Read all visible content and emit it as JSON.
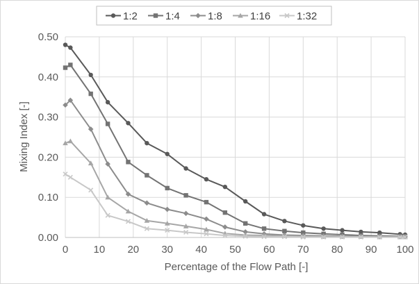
{
  "chart_data": {
    "type": "line",
    "xlabel": "Percentage of the Flow Path [-]",
    "ylabel": "Mixing Index [-]",
    "xlim": [
      0,
      100
    ],
    "ylim": [
      0,
      0.5
    ],
    "xticks": [
      0,
      10,
      20,
      30,
      40,
      50,
      60,
      70,
      80,
      90,
      100
    ],
    "yticks": [
      0.0,
      0.1,
      0.2,
      0.3,
      0.4,
      0.5
    ],
    "ytick_labels": [
      "0.00",
      "0.10",
      "0.20",
      "0.30",
      "0.40",
      "0.50"
    ],
    "grid": true,
    "legend_position": "top",
    "series": [
      {
        "name": "1:2",
        "color": "#595959",
        "marker": "circle",
        "x": [
          0,
          1.5,
          7.5,
          12.5,
          18.5,
          24,
          30,
          35.5,
          41.5,
          47,
          53,
          58.5,
          64.5,
          70,
          76,
          81.5,
          87,
          92.5,
          98.5,
          100
        ],
        "y": [
          0.48,
          0.473,
          0.405,
          0.337,
          0.285,
          0.235,
          0.208,
          0.172,
          0.145,
          0.126,
          0.09,
          0.058,
          0.041,
          0.03,
          0.022,
          0.018,
          0.014,
          0.012,
          0.008,
          0.007
        ]
      },
      {
        "name": "1:4",
        "color": "#737373",
        "marker": "square",
        "x": [
          0,
          1.5,
          7.5,
          12.5,
          18.5,
          24,
          30,
          35.5,
          41.5,
          47,
          53,
          58.5,
          64.5,
          70,
          76,
          81.5,
          87,
          92.5,
          98.5,
          100
        ],
        "y": [
          0.423,
          0.43,
          0.358,
          0.283,
          0.188,
          0.155,
          0.123,
          0.105,
          0.088,
          0.062,
          0.035,
          0.022,
          0.016,
          0.012,
          0.009,
          0.007,
          0.005,
          0.004,
          0.003,
          0.003
        ]
      },
      {
        "name": "1:8",
        "color": "#8c8c8c",
        "marker": "diamond",
        "x": [
          0,
          1.5,
          7.5,
          12.5,
          18.5,
          24,
          30,
          35.5,
          41.5,
          47,
          53,
          58.5,
          64.5,
          70,
          76,
          81.5,
          87,
          92.5,
          98.5,
          100
        ],
        "y": [
          0.33,
          0.342,
          0.27,
          0.183,
          0.108,
          0.086,
          0.07,
          0.06,
          0.046,
          0.026,
          0.014,
          0.009,
          0.006,
          0.005,
          0.004,
          0.003,
          0.003,
          0.002,
          0.002,
          0.002
        ]
      },
      {
        "name": "1:16",
        "color": "#a6a6a6",
        "marker": "triangle",
        "x": [
          0,
          1.5,
          7.5,
          12.5,
          18.5,
          24,
          30,
          35.5,
          41.5,
          47,
          53,
          58.5,
          64.5,
          70,
          76,
          81.5,
          87,
          92.5,
          98.5,
          100
        ],
        "y": [
          0.235,
          0.24,
          0.185,
          0.1,
          0.065,
          0.042,
          0.035,
          0.028,
          0.02,
          0.01,
          0.006,
          0.005,
          0.004,
          0.003,
          0.002,
          0.002,
          0.002,
          0.001,
          0.001,
          0.001
        ]
      },
      {
        "name": "1:32",
        "color": "#c8c8c8",
        "marker": "cross",
        "x": [
          0,
          1.5,
          7.5,
          12.5,
          18.5,
          24,
          30,
          35.5,
          41.5,
          47,
          53,
          58.5,
          64.5,
          70,
          76,
          81.5,
          87,
          92.5,
          98.5,
          100
        ],
        "y": [
          0.158,
          0.15,
          0.118,
          0.055,
          0.04,
          0.022,
          0.018,
          0.013,
          0.009,
          0.005,
          0.003,
          0.002,
          0.002,
          0.001,
          0.001,
          0.001,
          0.001,
          0.001,
          0.001,
          0.001
        ]
      }
    ]
  }
}
